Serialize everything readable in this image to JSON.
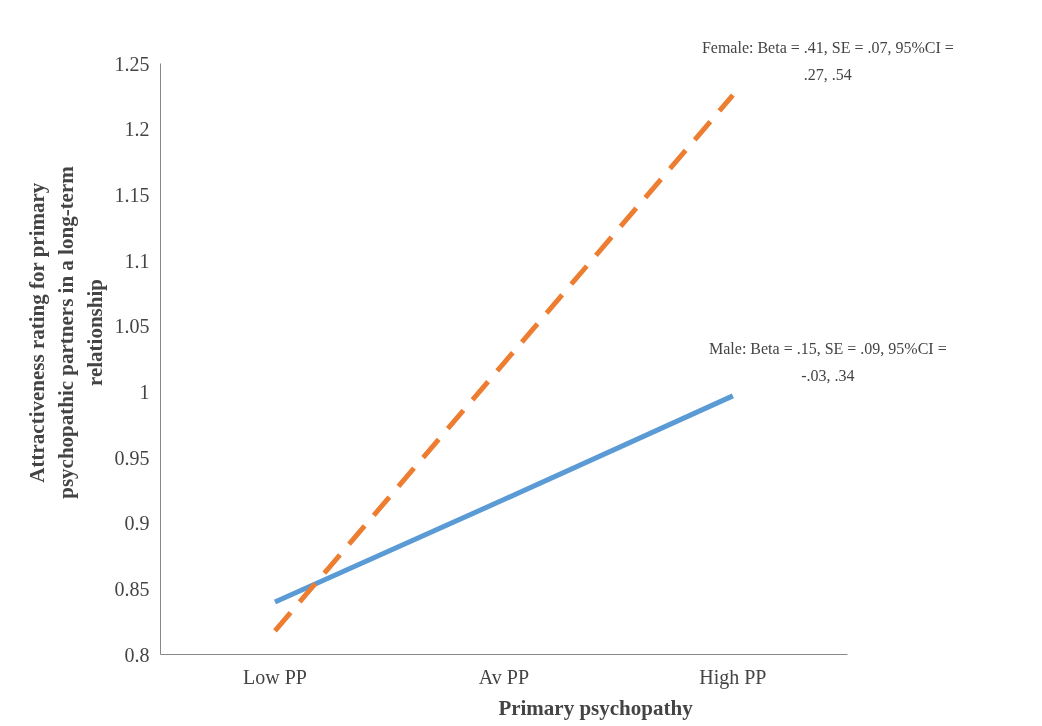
{
  "chart_data": {
    "type": "line",
    "xlabel": "Primary psychopathy",
    "ylabel": "Attractiveness rating for primary psychopathic partners in a long-term relationship",
    "categories": [
      "Low PP",
      "Av PP",
      "High PP"
    ],
    "series": [
      {
        "color": "#5b9bd5",
        "line_style": "solid",
        "values": [
          0.84,
          0.918,
          0.997
        ]
      },
      {
        "color": "#ed7d31",
        "line_style": "dashed",
        "values": [
          0.818,
          1.022,
          1.226
        ]
      }
    ],
    "ylim": [
      0.8,
      1.25
    ],
    "yticks": [
      0.8,
      0.85,
      0.9,
      0.95,
      1,
      1.05,
      1.1,
      1.15,
      1.2,
      1.25
    ],
    "grid": false,
    "marker": "none",
    "annotations": [
      {
        "text": "Female: Beta = .41, SE = .07, 95%CI = .27, .54",
        "x": "High PP",
        "y": 1.226
      },
      {
        "text": "Male: Beta = .15, SE = .09, 95%CI = -.03, .34",
        "x": "High PP",
        "y": 0.997
      }
    ]
  }
}
